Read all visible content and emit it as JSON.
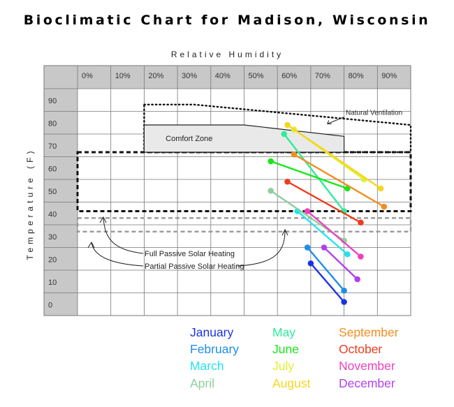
{
  "chart_data": {
    "type": "line",
    "title": "Bioclimatic Chart for Madison, Wisconsin",
    "xlabel": "Relative Humidity",
    "ylabel": "Temperature (F)",
    "x_ticks": [
      "0%",
      "10%",
      "20%",
      "30%",
      "40%",
      "50%",
      "60%",
      "70%",
      "80%",
      "90%"
    ],
    "y_ticks": [
      "90",
      "80",
      "70",
      "60",
      "50",
      "40",
      "30",
      "20",
      "10",
      "0"
    ],
    "xlim": [
      0,
      100
    ],
    "ylim": [
      -5,
      95
    ],
    "zones": [
      {
        "name": "Comfort Zone",
        "style": "solid",
        "points": [
          [
            20,
            79
          ],
          [
            50,
            79
          ],
          [
            80,
            74
          ],
          [
            80,
            67
          ],
          [
            20,
            67
          ]
        ]
      },
      {
        "name": "Natural Ventilation",
        "style": "dotted",
        "points": [
          [
            20,
            88
          ],
          [
            35,
            88
          ],
          [
            100,
            79
          ],
          [
            100,
            67
          ],
          [
            20,
            67
          ]
        ]
      },
      {
        "name": "Full Passive Solar Heating",
        "style": "dashed",
        "points": [
          [
            0,
            67
          ],
          [
            100,
            67
          ],
          [
            100,
            41
          ],
          [
            0,
            41
          ]
        ]
      },
      {
        "name": "Partial Passive Solar Heating",
        "style": "dashed-gray",
        "points": [
          [
            0,
            38
          ],
          [
            100,
            38
          ],
          [
            100,
            32
          ],
          [
            0,
            32
          ]
        ]
      }
    ],
    "annotations": [
      "Comfort Zone",
      "Natural Ventilation",
      "Full Passive Solar Heating",
      "Partial Passive Solar Heating"
    ],
    "series": [
      {
        "name": "January",
        "color": "#1b34e0",
        "points": [
          [
            70,
            18
          ],
          [
            80,
            1
          ]
        ]
      },
      {
        "name": "February",
        "color": "#1e8de8",
        "points": [
          [
            69,
            25
          ],
          [
            80,
            6
          ]
        ]
      },
      {
        "name": "March",
        "color": "#22e4ef",
        "points": [
          [
            66,
            41
          ],
          [
            81,
            22
          ]
        ]
      },
      {
        "name": "April",
        "color": "#8ecf9c",
        "points": [
          [
            58,
            50
          ],
          [
            80,
            28
          ]
        ]
      },
      {
        "name": "May",
        "color": "#2eec9c",
        "points": [
          [
            62,
            75
          ],
          [
            80,
            41
          ]
        ]
      },
      {
        "name": "June",
        "color": "#17e81a",
        "points": [
          [
            58,
            63
          ],
          [
            81,
            51
          ]
        ]
      },
      {
        "name": "July",
        "color": "#dff02e",
        "points": [
          [
            65,
            77
          ],
          [
            86,
            55
          ]
        ]
      },
      {
        "name": "August",
        "color": "#f4d620",
        "points": [
          [
            63,
            79
          ],
          [
            91,
            51
          ]
        ]
      },
      {
        "name": "September",
        "color": "#f38d1e",
        "points": [
          [
            65,
            66
          ],
          [
            92,
            43
          ]
        ]
      },
      {
        "name": "October",
        "color": "#ee3b1d",
        "points": [
          [
            63,
            54
          ],
          [
            85,
            36
          ]
        ]
      },
      {
        "name": "November",
        "color": "#ef3fc0",
        "points": [
          [
            69,
            41
          ],
          [
            85,
            21
          ]
        ]
      },
      {
        "name": "December",
        "color": "#b241ee",
        "points": [
          [
            74,
            25
          ],
          [
            84,
            11
          ]
        ]
      }
    ],
    "legend": {
      "placement": "bottom-right",
      "columns": [
        [
          {
            "label": "January",
            "color": "#1b34e0"
          },
          {
            "label": "February",
            "color": "#1e8de8"
          },
          {
            "label": "March",
            "color": "#22e4ef"
          },
          {
            "label": "April",
            "color": "#8ecf9c"
          }
        ],
        [
          {
            "label": "May",
            "color": "#2eec9c"
          },
          {
            "label": "June",
            "color": "#17e81a"
          },
          {
            "label": "July",
            "color": "#dff02e"
          },
          {
            "label": "August",
            "color": "#f4d620"
          }
        ],
        [
          {
            "label": "September",
            "color": "#f38d1e"
          },
          {
            "label": "October",
            "color": "#ee3b1d"
          },
          {
            "label": "November",
            "color": "#ef3fc0"
          },
          {
            "label": "December",
            "color": "#b241ee"
          }
        ]
      ]
    },
    "grid": true
  }
}
